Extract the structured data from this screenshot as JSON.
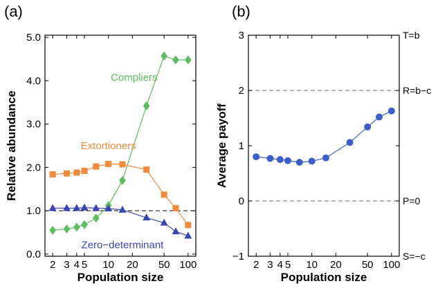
{
  "chart_data": [
    {
      "type": "line",
      "panel_label": "(a)",
      "xlabel": "Population size",
      "ylabel": "Relative abundance",
      "x_scale": "log",
      "xlim": [
        1.6,
        125
      ],
      "ylim": [
        -0.05,
        5.05
      ],
      "x_ticks": [
        2,
        3,
        4,
        5,
        10,
        20,
        50,
        100
      ],
      "x_tick_labels": [
        "2",
        "3",
        "4",
        "5",
        "10",
        "20",
        "50",
        "100"
      ],
      "y_ticks": [
        0,
        1,
        2,
        3,
        4,
        5
      ],
      "y_tick_labels": [
        "0.0",
        "1.0",
        "2.0",
        "3.0",
        "4.0",
        "5.0"
      ],
      "reference_lines": [
        {
          "y": 1.0,
          "style": "dashed",
          "color": "#333333"
        }
      ],
      "x": [
        2,
        3,
        4,
        5,
        7,
        10,
        15,
        30,
        50,
        70,
        100
      ],
      "series": [
        {
          "name": "Compliers",
          "marker": "diamond",
          "color": "#5cbd5c",
          "values": [
            0.55,
            0.58,
            0.62,
            0.68,
            0.83,
            1.12,
            1.7,
            3.42,
            4.57,
            4.48,
            4.48
          ]
        },
        {
          "name": "Extortioners",
          "marker": "square",
          "color": "#f28a3c",
          "values": [
            1.84,
            1.86,
            1.88,
            1.92,
            2.02,
            2.08,
            2.07,
            1.95,
            1.37,
            1.06,
            0.67
          ]
        },
        {
          "name": "Zero−determinant",
          "marker": "triangle",
          "color": "#3a45b5",
          "values": [
            1.06,
            1.06,
            1.06,
            1.07,
            1.06,
            1.05,
            1.02,
            0.84,
            0.72,
            0.52,
            0.42
          ]
        }
      ],
      "series_label_anchor": {
        "Compliers": 21,
        "Extortioners": 10,
        "Zero−determinant": 15
      }
    },
    {
      "type": "line",
      "panel_label": "(b)",
      "xlabel": "Population size",
      "ylabel": "Average payoff",
      "x_scale": "log",
      "xlim": [
        1.6,
        125
      ],
      "ylim": [
        -1,
        3
      ],
      "x_ticks": [
        2,
        3,
        4,
        5,
        10,
        20,
        50,
        100
      ],
      "x_tick_labels": [
        "2",
        "3",
        "4",
        "5",
        "10",
        "20",
        "50",
        "100"
      ],
      "y_ticks": [
        -1,
        0,
        1,
        2,
        3
      ],
      "y_tick_labels": [
        "−1",
        "0",
        "1",
        "2",
        "3"
      ],
      "right_labels": [
        {
          "y": 3,
          "text": "T=b"
        },
        {
          "y": 2,
          "text": "R=b−c"
        },
        {
          "y": 0,
          "text": "P=0"
        },
        {
          "y": -1,
          "text": "S=−c"
        }
      ],
      "reference_lines": [
        {
          "y": 2,
          "style": "dashed",
          "color": "#888888"
        },
        {
          "y": 0,
          "style": "dashed",
          "color": "#888888"
        }
      ],
      "series": [
        {
          "name": "",
          "marker": "circle",
          "color": "#3a5fcd",
          "x": [
            2,
            3,
            4,
            5,
            7,
            10,
            15,
            30,
            50,
            70,
            100
          ],
          "values": [
            0.8,
            0.77,
            0.75,
            0.73,
            0.7,
            0.72,
            0.78,
            1.06,
            1.34,
            1.52,
            1.63
          ]
        }
      ]
    }
  ]
}
